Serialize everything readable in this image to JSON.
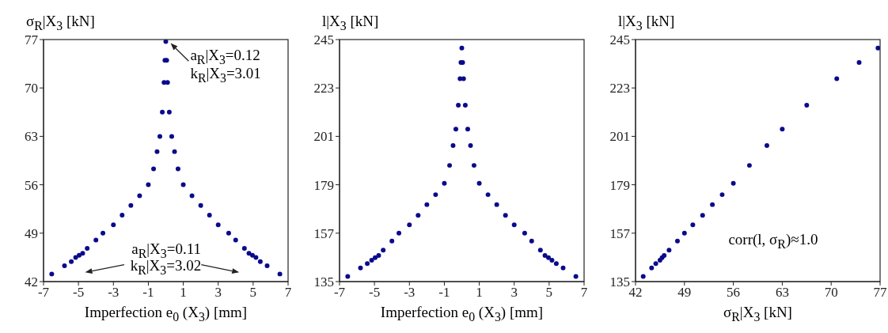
{
  "chart_data": [
    {
      "type": "scatter",
      "ylabel": "σ$_{R}$|X$_{3}$ [kN]",
      "xlabel": "Imperfection e$_{0}$ (X$_{3}$) [mm]",
      "color": "#0a0a8c",
      "marker": "circle",
      "grid": false,
      "legend": false,
      "xlim": [
        -7,
        7
      ],
      "xticks": [
        -7,
        -5,
        -3,
        -1,
        1,
        3,
        5,
        7
      ],
      "ylim": [
        42,
        77
      ],
      "yticks": [
        42,
        49,
        56,
        63,
        70,
        77
      ],
      "x": [
        -6.53,
        -5.8,
        -5.41,
        -5.16,
        -4.96,
        -4.76,
        -4.5,
        -4.0,
        -3.6,
        -3.0,
        -2.5,
        -2.0,
        -1.5,
        -1.0,
        -0.7,
        -0.5,
        -0.34,
        -0.2,
        -0.1,
        -0.05,
        0,
        0.05,
        0.1,
        0.2,
        0.34,
        0.5,
        0.7,
        1.0,
        1.5,
        2.0,
        2.5,
        3.0,
        3.6,
        4.0,
        4.5,
        4.76,
        4.96,
        5.16,
        5.41,
        5.8,
        6.53
      ],
      "values": [
        43.1,
        44.3,
        44.9,
        45.5,
        45.8,
        46.1,
        46.8,
        48.0,
        49.0,
        50.2,
        51.6,
        53.0,
        54.4,
        56.0,
        58.3,
        60.8,
        63.0,
        66.5,
        70.8,
        74.0,
        76.7,
        74.0,
        70.8,
        66.5,
        63.0,
        60.8,
        58.3,
        56.0,
        54.4,
        53.0,
        51.6,
        50.2,
        49.0,
        48.0,
        46.8,
        46.1,
        45.8,
        45.5,
        44.9,
        44.3,
        43.1
      ],
      "annotations": [
        {
          "text": "a$_{R}$|X$_{3}$=0.12",
          "x": 0,
          "y": 76.7
        },
        "k$_{R}$|X$_{3}$=3.01",
        "a$_{R}$|X$_{3}$=0.11",
        "k$_{R}$|X$_{3}$=3.02"
      ]
    },
    {
      "type": "scatter",
      "ylabel": "l|X$_{3}$ [kN]",
      "xlabel": "Imperfection e$_{0}$ (X$_{3}$) [mm]",
      "color": "#0a0a8c",
      "marker": "circle",
      "grid": false,
      "legend": false,
      "xlim": [
        -7,
        7
      ],
      "xticks": [
        -7,
        -5,
        -3,
        -1,
        1,
        3,
        5,
        7
      ],
      "ylim": [
        135,
        245
      ],
      "yticks": [
        135,
        157,
        179,
        201,
        223,
        245
      ],
      "x": [
        -6.53,
        -5.8,
        -5.41,
        -5.16,
        -4.96,
        -4.76,
        -4.5,
        -4.0,
        -3.6,
        -3.0,
        -2.5,
        -2.0,
        -1.5,
        -1.0,
        -0.7,
        -0.5,
        -0.34,
        -0.2,
        -0.1,
        -0.05,
        0,
        0.05,
        0.1,
        0.2,
        0.34,
        0.5,
        0.7,
        1.0,
        1.5,
        2.0,
        2.5,
        3.0,
        3.6,
        4.0,
        4.5,
        4.76,
        4.96,
        5.16,
        5.41,
        5.8,
        6.53
      ],
      "values": [
        137.3,
        141.2,
        143.2,
        144.7,
        145.9,
        146.9,
        149.3,
        153.4,
        157.0,
        160.8,
        165.1,
        170.0,
        174.5,
        179.7,
        187.8,
        196.8,
        204.3,
        215.2,
        227.2,
        234.6,
        241.1,
        234.6,
        227.2,
        215.2,
        204.3,
        196.8,
        187.8,
        179.7,
        174.5,
        170.0,
        165.1,
        160.8,
        157.0,
        153.4,
        149.3,
        146.9,
        145.9,
        144.7,
        143.2,
        141.2,
        137.3
      ]
    },
    {
      "type": "scatter",
      "ylabel": "l|X$_{3}$ [kN]",
      "xlabel": "σ$_{R}$|X$_{3}$ [kN]",
      "color": "#0a0a8c",
      "marker": "circle",
      "grid": false,
      "legend": false,
      "xlim": [
        42,
        77
      ],
      "xticks": [
        42,
        49,
        56,
        63,
        70,
        77
      ],
      "ylim": [
        135,
        245
      ],
      "yticks": [
        135,
        157,
        179,
        201,
        223,
        245
      ],
      "x": [
        43.1,
        44.3,
        44.9,
        45.5,
        45.8,
        46.1,
        46.8,
        48.0,
        49.0,
        50.2,
        51.6,
        53.0,
        54.4,
        56.0,
        58.3,
        60.8,
        63.0,
        66.5,
        70.8,
        74.0,
        76.7
      ],
      "values": [
        137.3,
        141.2,
        143.2,
        144.7,
        145.9,
        146.9,
        149.3,
        153.4,
        157.0,
        160.8,
        165.1,
        170.0,
        174.5,
        179.7,
        187.8,
        196.8,
        204.3,
        215.2,
        227.2,
        234.6,
        241.1
      ],
      "annotations": [
        "corr(l, σ$_{R}$)≈1.0"
      ]
    }
  ]
}
